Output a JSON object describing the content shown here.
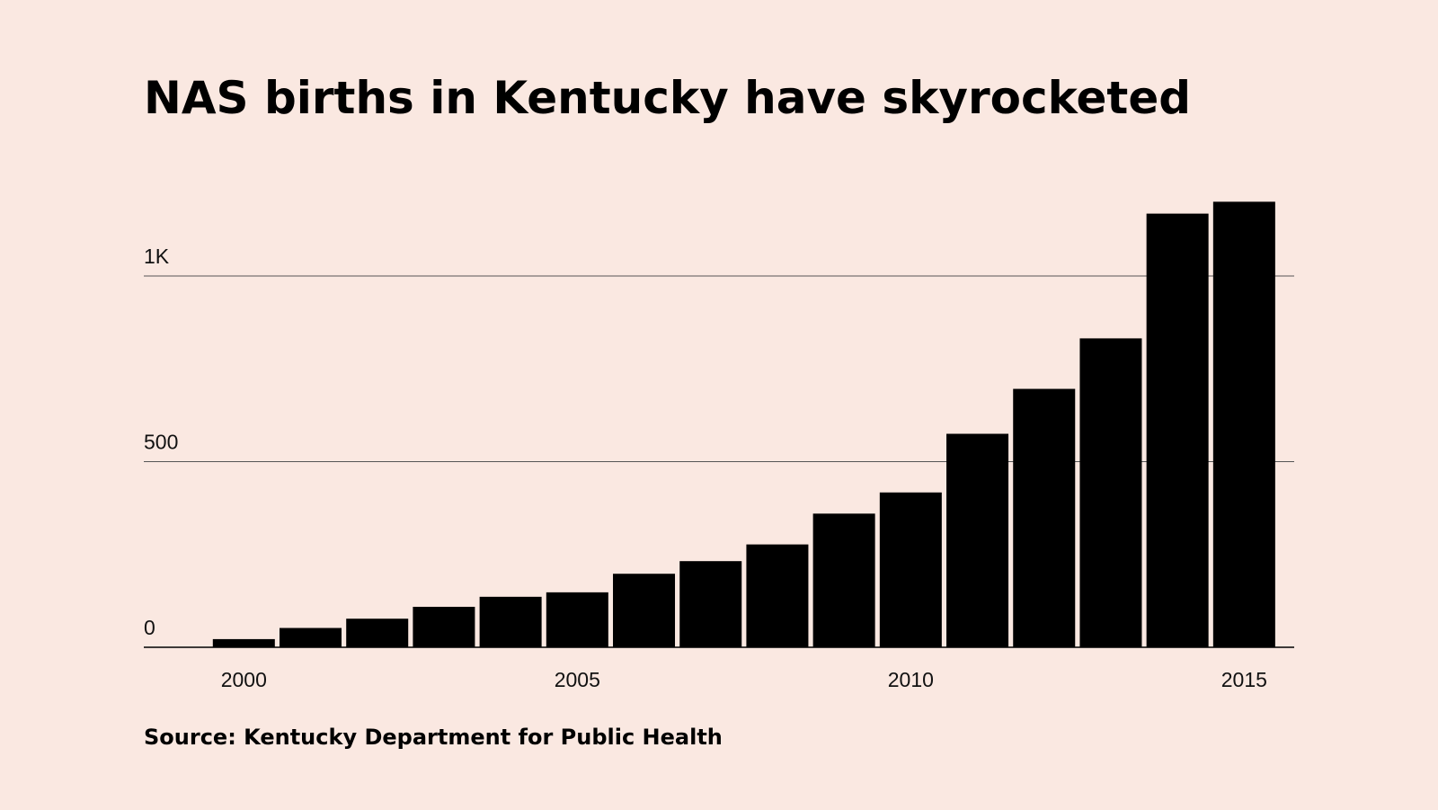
{
  "chart_data": {
    "type": "bar",
    "title": "NAS births in Kentucky have skyrocketed",
    "source": "Source: Kentucky Department for Public Health",
    "x": [
      2000,
      2001,
      2002,
      2003,
      2004,
      2005,
      2006,
      2007,
      2008,
      2009,
      2010,
      2011,
      2012,
      2013,
      2014,
      2015
    ],
    "values": [
      22,
      52,
      77,
      109,
      136,
      148,
      198,
      232,
      277,
      360,
      417,
      575,
      696,
      832,
      1168,
      1200
    ],
    "color": "#000000",
    "xlim": [
      1998.5,
      2015.75
    ],
    "xticks": [
      2000,
      2005,
      2010,
      2015
    ],
    "ylim": [
      0,
      1200
    ],
    "yticks": [
      0,
      500,
      {
        "value": 1000,
        "label": "1K"
      }
    ],
    "grid": true
  }
}
